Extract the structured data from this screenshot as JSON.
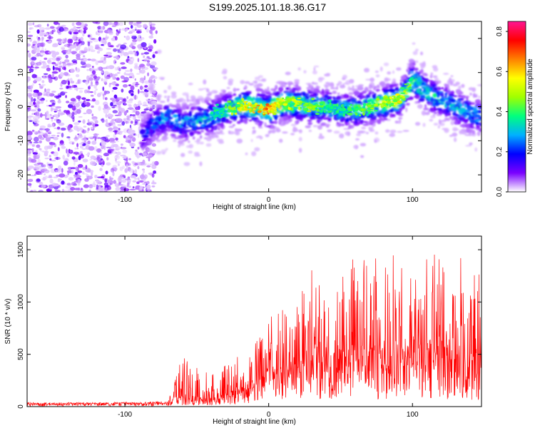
{
  "title": "S199.2025.101.18.36.G17",
  "chart_data": [
    {
      "type": "heatmap",
      "xlabel": "Height of straight line (km)",
      "ylabel": "Frequency (Hz)",
      "xlim": [
        -168,
        148
      ],
      "ylim": [
        -25,
        25
      ],
      "xticks": [
        -100,
        0,
        100
      ],
      "xtick_labels": [
        "-100",
        "0",
        "100"
      ],
      "yticks": [
        -20,
        -10,
        0,
        10,
        20
      ],
      "ytick_labels": [
        "-20",
        "-10",
        "0",
        "10",
        "20"
      ],
      "colorbar": {
        "label": "Normalized spectral amplitude",
        "range": [
          0,
          0.85
        ],
        "ticks": [
          0.0,
          0.2,
          0.4,
          0.6,
          0.8
        ],
        "tick_labels": [
          "0.0",
          "0.2",
          "0.4",
          "0.6",
          "0.8"
        ],
        "colormap": [
          "#ffffff",
          "#7a00ff",
          "#0000ff",
          "#00b0ff",
          "#00ff7f",
          "#a0ff00",
          "#ffff00",
          "#ff8000",
          "#ff0000",
          "#ff1493"
        ]
      },
      "noise_region_x": [
        -168,
        -78
      ],
      "signal_ridge": {
        "x": [
          -88,
          -80,
          -70,
          -60,
          -50,
          -40,
          -30,
          -20,
          -10,
          0,
          10,
          20,
          30,
          40,
          50,
          60,
          70,
          80,
          90,
          95,
          100,
          110,
          120,
          130,
          140,
          148
        ],
        "center_freq": [
          -9,
          -5,
          -3,
          -5,
          -4,
          -3,
          -1,
          0,
          0,
          -1,
          1,
          1,
          0,
          0,
          -1,
          -1,
          0,
          1,
          2,
          4,
          8,
          4,
          2,
          0,
          -2,
          -3
        ],
        "peak_amplitude": [
          0.15,
          0.22,
          0.3,
          0.3,
          0.3,
          0.35,
          0.4,
          0.55,
          0.6,
          0.65,
          0.55,
          0.5,
          0.45,
          0.4,
          0.38,
          0.4,
          0.45,
          0.5,
          0.55,
          0.5,
          0.45,
          0.35,
          0.32,
          0.3,
          0.3,
          0.28
        ]
      },
      "grid": false
    },
    {
      "type": "line",
      "xlabel": "Height of straight line (km)",
      "ylabel": "SNR (10 * v/v)",
      "xlim": [
        -168,
        148
      ],
      "ylim": [
        0,
        1630
      ],
      "xticks": [
        -100,
        0,
        100
      ],
      "xtick_labels": [
        "-100",
        "0",
        "100"
      ],
      "yticks": [
        0,
        500,
        1000,
        1500
      ],
      "ytick_labels": [
        "0",
        "500",
        "1000",
        "1500"
      ],
      "color": "#ff0000",
      "envelope": {
        "x": [
          -168,
          -120,
          -80,
          -70,
          -65,
          -60,
          -50,
          -40,
          -30,
          -20,
          -10,
          0,
          10,
          20,
          30,
          40,
          50,
          60,
          70,
          80,
          90,
          100,
          110,
          120,
          130,
          140,
          148
        ],
        "baseline": [
          20,
          25,
          25,
          30,
          60,
          70,
          60,
          50,
          90,
          120,
          180,
          250,
          280,
          320,
          350,
          380,
          350,
          400,
          380,
          350,
          420,
          350,
          400,
          380,
          320,
          320,
          350
        ],
        "peak": [
          40,
          40,
          50,
          60,
          300,
          500,
          380,
          300,
          400,
          500,
          600,
          850,
          950,
          1000,
          1350,
          1400,
          1300,
          1500,
          1450,
          1400,
          1550,
          1200,
          1630,
          1550,
          1400,
          1500,
          1300
        ]
      },
      "grid": false
    }
  ]
}
